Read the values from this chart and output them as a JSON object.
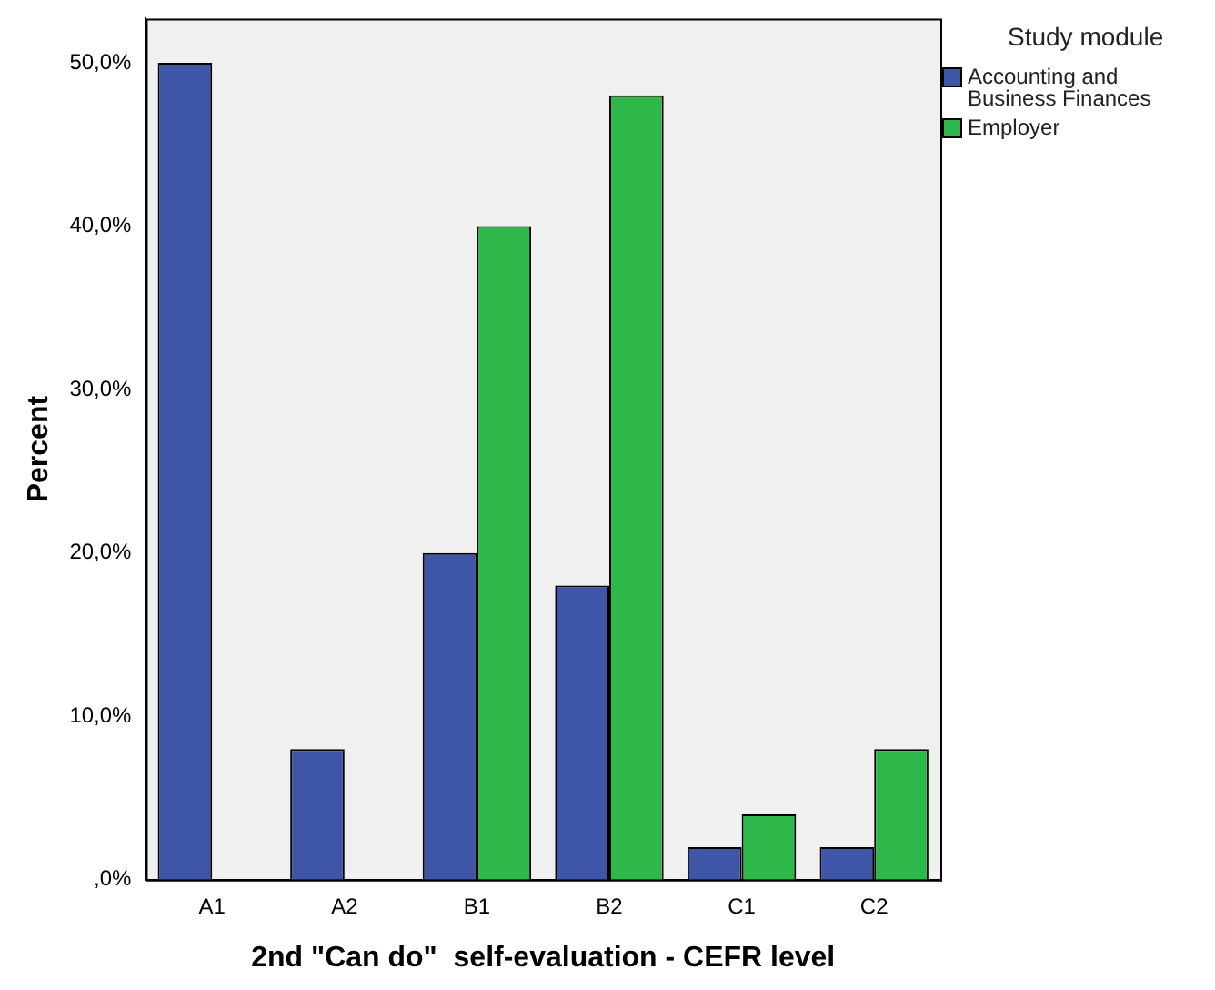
{
  "chart_data": {
    "type": "bar",
    "xlabel": "2nd \"Can do\"  self-evaluation - CEFR level",
    "ylabel": "Percent",
    "legend_title": "Study module",
    "categories": [
      "A1",
      "A2",
      "B1",
      "B2",
      "C1",
      "C2"
    ],
    "series": [
      {
        "name": "Accounting and Business Finances",
        "color": "#3f56a8",
        "values": [
          50,
          8,
          20,
          18,
          2,
          2
        ]
      },
      {
        "name": "Employer",
        "color": "#2fb84a",
        "values": [
          0,
          0,
          40,
          48,
          4,
          8
        ]
      }
    ],
    "ylim": [
      0,
      52.7
    ],
    "yticks": [
      {
        "value": 0,
        "label": ",0%"
      },
      {
        "value": 10,
        "label": "10,0%"
      },
      {
        "value": 20,
        "label": "20,0%"
      },
      {
        "value": 30,
        "label": "30,0%"
      },
      {
        "value": 40,
        "label": "40,0%"
      },
      {
        "value": 50,
        "label": "50,0%"
      }
    ],
    "grid": false,
    "legend": "top right"
  }
}
